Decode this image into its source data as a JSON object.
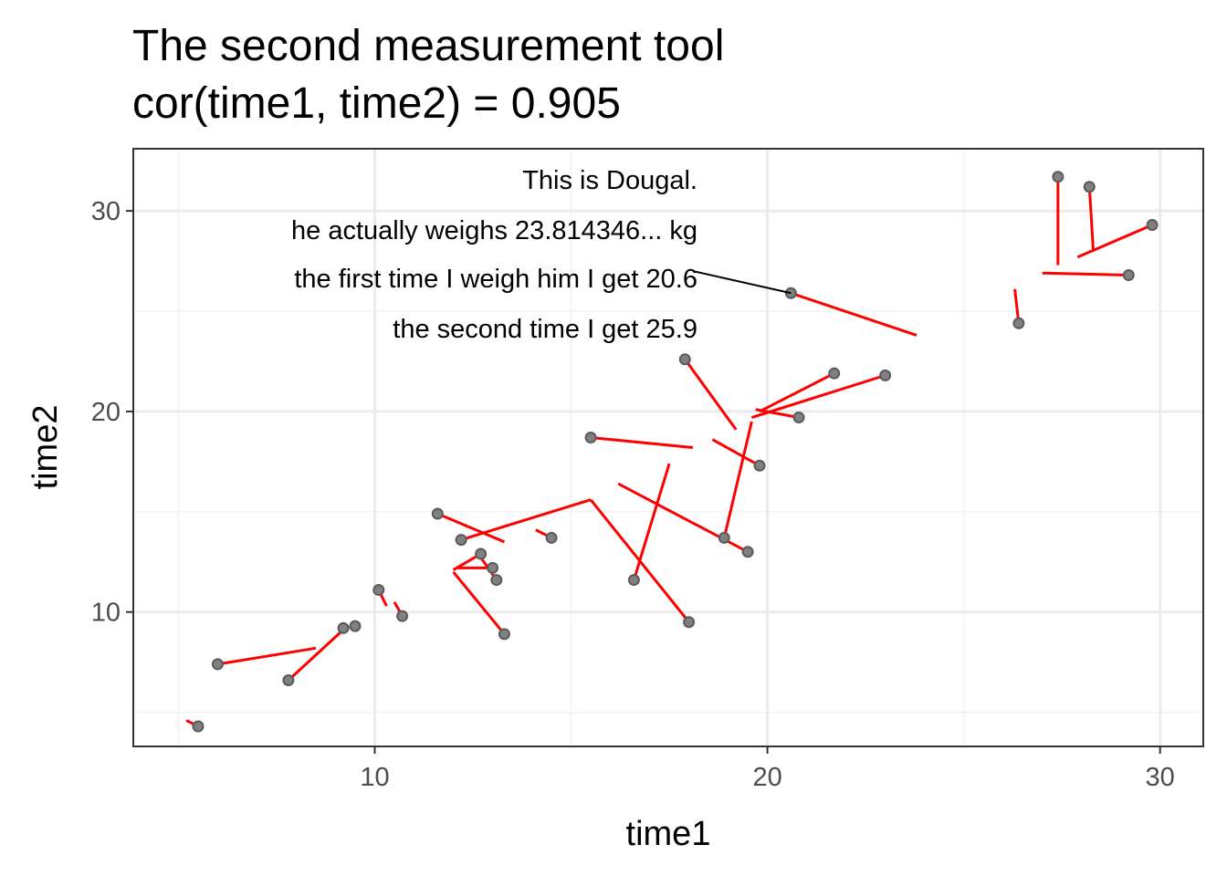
{
  "chart_data": {
    "type": "scatter",
    "title_lines": [
      "The second measurement tool",
      "cor(time1, time2) = 0.905"
    ],
    "xlabel": "time1",
    "ylabel": "time2",
    "xlim": [
      3.85,
      31.1
    ],
    "ylim": [
      3.3,
      33.1
    ],
    "x_major_ticks": [
      10,
      20,
      30
    ],
    "y_major_ticks": [
      10,
      20,
      30
    ],
    "x_minor_ticks": [
      5,
      15,
      25
    ],
    "y_minor_ticks": [
      5,
      15,
      25
    ],
    "x_tick_labels": [
      "10",
      "20",
      "30"
    ],
    "y_tick_labels": [
      "10",
      "20",
      "30"
    ],
    "grid": true,
    "point_color": "#808080",
    "point_edge_color": "#5a5a5a",
    "segment_color": "#ff0000",
    "annotation_line_color": "#000000",
    "annotation": {
      "lines": [
        "This is Dougal.",
        "he actually weighs 23.814346... kg",
        "the first time I weigh him I get 20.6",
        "the second time I get 25.9"
      ],
      "x": 18.1,
      "y": 27.0
    },
    "points": [
      {
        "x": 5.5,
        "y": 4.3,
        "x_true": 5.2,
        "y_true": 4.6
      },
      {
        "x": 6.0,
        "y": 7.4,
        "x_true": 8.5,
        "y_true": 8.2
      },
      {
        "x": 7.8,
        "y": 6.6,
        "x_true": 9.3,
        "y_true": 9.3
      },
      {
        "x": 9.2,
        "y": 9.2,
        "x_true": 9.2,
        "y_true": 9.2
      },
      {
        "x": 9.5,
        "y": 9.3,
        "x_true": 9.5,
        "y_true": 9.3
      },
      {
        "x": 10.1,
        "y": 11.1,
        "x_true": 10.3,
        "y_true": 10.3
      },
      {
        "x": 10.7,
        "y": 9.8,
        "x_true": 10.5,
        "y_true": 10.5
      },
      {
        "x": 11.6,
        "y": 14.9,
        "x_true": 13.3,
        "y_true": 13.5
      },
      {
        "x": 12.2,
        "y": 13.6,
        "x_true": 15.5,
        "y_true": 15.6
      },
      {
        "x": 12.7,
        "y": 12.9,
        "x_true": 12.0,
        "y_true": 12.1
      },
      {
        "x": 13.0,
        "y": 12.2,
        "x_true": 12.1,
        "y_true": 12.2
      },
      {
        "x": 13.1,
        "y": 11.6,
        "x_true": 12.6,
        "y_true": 13.0
      },
      {
        "x": 13.3,
        "y": 8.9,
        "x_true": 12.0,
        "y_true": 12.0
      },
      {
        "x": 14.5,
        "y": 13.7,
        "x_true": 14.1,
        "y_true": 14.1
      },
      {
        "x": 15.5,
        "y": 18.7,
        "x_true": 18.1,
        "y_true": 18.2
      },
      {
        "x": 16.6,
        "y": 11.6,
        "x_true": 17.5,
        "y_true": 17.4
      },
      {
        "x": 18.0,
        "y": 9.5,
        "x_true": 15.5,
        "y_true": 15.6
      },
      {
        "x": 17.9,
        "y": 22.6,
        "x_true": 19.2,
        "y_true": 19.1
      },
      {
        "x": 18.9,
        "y": 13.7,
        "x_true": 19.6,
        "y_true": 19.5
      },
      {
        "x": 19.5,
        "y": 13.0,
        "x_true": 16.2,
        "y_true": 16.4
      },
      {
        "x": 19.8,
        "y": 17.3,
        "x_true": 18.6,
        "y_true": 18.6
      },
      {
        "x": 20.6,
        "y": 25.9,
        "x_true": 23.8,
        "y_true": 23.8
      },
      {
        "x": 20.8,
        "y": 19.7,
        "x_true": 19.7,
        "y_true": 20.1
      },
      {
        "x": 21.7,
        "y": 21.9,
        "x_true": 19.8,
        "y_true": 20.0
      },
      {
        "x": 23.0,
        "y": 21.8,
        "x_true": 19.6,
        "y_true": 19.7
      },
      {
        "x": 26.4,
        "y": 24.4,
        "x_true": 26.3,
        "y_true": 26.1
      },
      {
        "x": 27.4,
        "y": 31.7,
        "x_true": 27.4,
        "y_true": 27.3
      },
      {
        "x": 28.2,
        "y": 31.2,
        "x_true": 28.3,
        "y_true": 28.0
      },
      {
        "x": 29.2,
        "y": 26.8,
        "x_true": 27.0,
        "y_true": 26.9
      },
      {
        "x": 29.8,
        "y": 29.3,
        "x_true": 27.9,
        "y_true": 27.7
      }
    ]
  }
}
